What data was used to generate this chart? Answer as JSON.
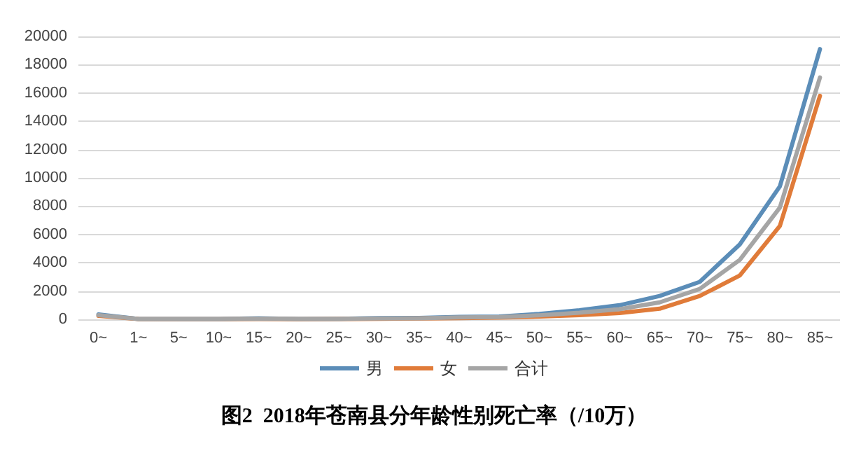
{
  "chart_data": {
    "type": "line",
    "title": "图2  2018年苍南县分年龄性别死亡率（/10万）",
    "categories": [
      "0~",
      "1~",
      "5~",
      "10~",
      "15~",
      "20~",
      "25~",
      "30~",
      "35~",
      "40~",
      "45~",
      "50~",
      "55~",
      "60~",
      "65~",
      "70~",
      "75~",
      "80~",
      "85~"
    ],
    "series": [
      {
        "name": "男",
        "color": "#5b8db8",
        "values": [
          350,
          30,
          20,
          20,
          80,
          30,
          40,
          90,
          100,
          170,
          200,
          380,
          650,
          1000,
          1650,
          2650,
          5300,
          9400,
          19100
        ]
      },
      {
        "name": "女",
        "color": "#e07b39",
        "values": [
          250,
          20,
          10,
          10,
          30,
          10,
          20,
          40,
          60,
          90,
          120,
          200,
          300,
          450,
          750,
          1650,
          3100,
          6600,
          15800
        ]
      },
      {
        "name": "合计",
        "color": "#a5a5a5",
        "values": [
          300,
          25,
          15,
          15,
          55,
          20,
          30,
          65,
          80,
          130,
          160,
          290,
          470,
          720,
          1200,
          2150,
          4200,
          7900,
          17100
        ]
      }
    ],
    "ylim": [
      0,
      20000
    ],
    "yticks": [
      0,
      2000,
      4000,
      6000,
      8000,
      10000,
      12000,
      14000,
      16000,
      18000,
      20000
    ],
    "grid": "y",
    "legend": "bottom",
    "marker": "none",
    "line_style": "solid"
  }
}
